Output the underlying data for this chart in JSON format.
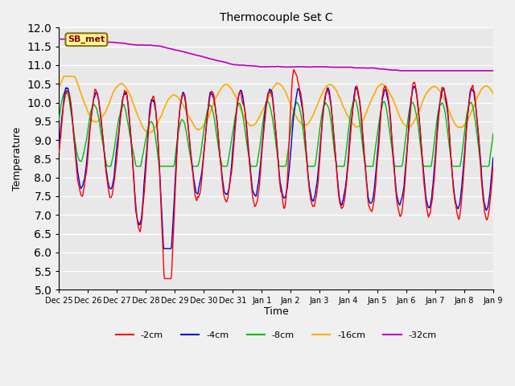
{
  "title": "Thermocouple Set C",
  "xlabel": "Time",
  "ylabel": "Temperature",
  "ylim": [
    5.0,
    12.0
  ],
  "yticks": [
    5.0,
    5.5,
    6.0,
    6.5,
    7.0,
    7.5,
    8.0,
    8.5,
    9.0,
    9.5,
    10.0,
    10.5,
    11.0,
    11.5,
    12.0
  ],
  "colors": {
    "-2cm": "#ff0000",
    "-4cm": "#0000dd",
    "-8cm": "#00bb00",
    "-16cm": "#ffaa00",
    "-32cm": "#bb00bb"
  },
  "legend_labels": [
    "-2cm",
    "-4cm",
    "-8cm",
    "-16cm",
    "-32cm"
  ],
  "sb_met_label": "SB_met",
  "plot_bg": "#e8e8e8",
  "fig_bg": "#f0f0f0",
  "tick_labels": [
    "Dec 25",
    "Dec 26",
    "Dec 27",
    "Dec 28",
    "Dec 29",
    "Dec 30",
    "Dec 31",
    "Jan 1",
    "Jan 2",
    "Jan 3",
    "Jan 4",
    "Jan 5",
    "Jan 6",
    "Jan 7",
    "Jan 8",
    "Jan 9"
  ]
}
